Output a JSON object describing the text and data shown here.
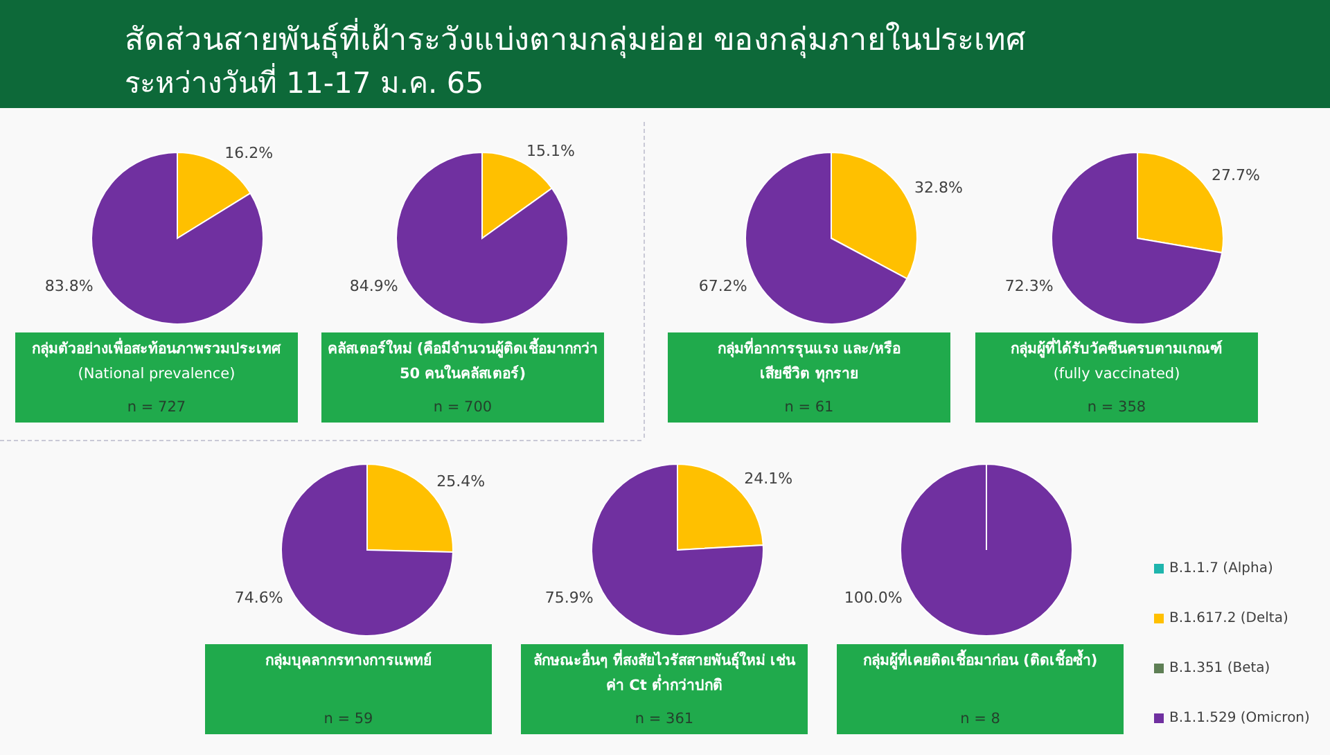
{
  "chart_data": [
    {
      "type": "other",
      "title": "สัดส่วนสายพันธุ์ที่เฝ้าระวังแบ่งตามกลุ่มย่อย ของกลุ่มภายในประเทศ",
      "subtitle": "ระหว่างวันที่ 11-17 ม.ค. 65"
    },
    {
      "type": "pie",
      "title": "กลุ่มตัวอย่างเพื่อสะท้อนภาพรวมประเทศ",
      "subtitle": "(National prevalence)",
      "annotations": [
        "n = 727"
      ],
      "categories": [
        null,
        null
      ],
      "values": [
        16.2,
        83.8
      ],
      "colors": [
        "#ffc000",
        "#7030a0"
      ],
      "value_labels": [
        "16.2%",
        "83.8%"
      ]
    },
    {
      "type": "pie",
      "title": "คลัสเตอร์ใหม่ (คือมีจำนวนผู้ติดเชื้อมากกว่า\n50 คนในคลัสเตอร์)",
      "annotations": [
        "n = 700"
      ],
      "categories": [
        null,
        null
      ],
      "values": [
        15.1,
        84.9
      ],
      "colors": [
        "#ffc000",
        "#7030a0"
      ],
      "value_labels": [
        "15.1%",
        "84.9%"
      ]
    },
    {
      "type": "pie",
      "title": "กลุ่มที่อาการรุนแรง และ/หรือ\nเสียชีวิต ทุกราย",
      "annotations": [
        "n = 61"
      ],
      "categories": [
        null,
        null
      ],
      "values": [
        32.8,
        67.2
      ],
      "colors": [
        "#ffc000",
        "#7030a0"
      ],
      "value_labels": [
        "32.8%",
        "67.2%"
      ]
    },
    {
      "type": "pie",
      "title": "กลุ่มผู้ที่ได้รับวัคซีนครบตามเกณฑ์",
      "subtitle": "(fully vaccinated)",
      "annotations": [
        "n = 358"
      ],
      "categories": [
        null,
        null
      ],
      "values": [
        27.7,
        72.3
      ],
      "colors": [
        "#ffc000",
        "#7030a0"
      ],
      "value_labels": [
        "27.7%",
        "72.3%"
      ]
    },
    {
      "type": "pie",
      "title": "กลุ่มบุคลากรทางการแพทย์",
      "annotations": [
        "n = 59"
      ],
      "categories": [
        null,
        null
      ],
      "values": [
        25.4,
        74.6
      ],
      "colors": [
        "#ffc000",
        "#7030a0"
      ],
      "value_labels": [
        "25.4%",
        "74.6%"
      ]
    },
    {
      "type": "pie",
      "title": "ลักษณะอื่นๆ ที่สงสัยไวรัสสายพันธุ์ใหม่ เช่น\nค่า Ct ต่ำกว่าปกติ",
      "annotations": [
        "n = 361"
      ],
      "categories": [
        null,
        null
      ],
      "values": [
        24.1,
        75.9
      ],
      "colors": [
        "#ffc000",
        "#7030a0"
      ],
      "value_labels": [
        "24.1%",
        "75.9%"
      ]
    },
    {
      "type": "pie",
      "title": "กลุ่มผู้ที่เคยติดเชื้อมาก่อน (ติดเชื้อซ้ำ)",
      "annotations": [
        "n = 8"
      ],
      "categories": [
        "B.1.1.7 (Alpha)",
        "B.1.617.2 (Delta)",
        "B.1.351 (Beta)",
        "B.1.1.529 (Omicron)"
      ],
      "values": [
        0,
        0,
        0,
        100
      ],
      "colors": [
        "#1fb5ad",
        "#ffc000",
        "#5e7f55",
        "#7030a0"
      ],
      "value_labels": [
        null,
        null,
        null,
        "100.0%"
      ],
      "legend": "right"
    }
  ]
}
